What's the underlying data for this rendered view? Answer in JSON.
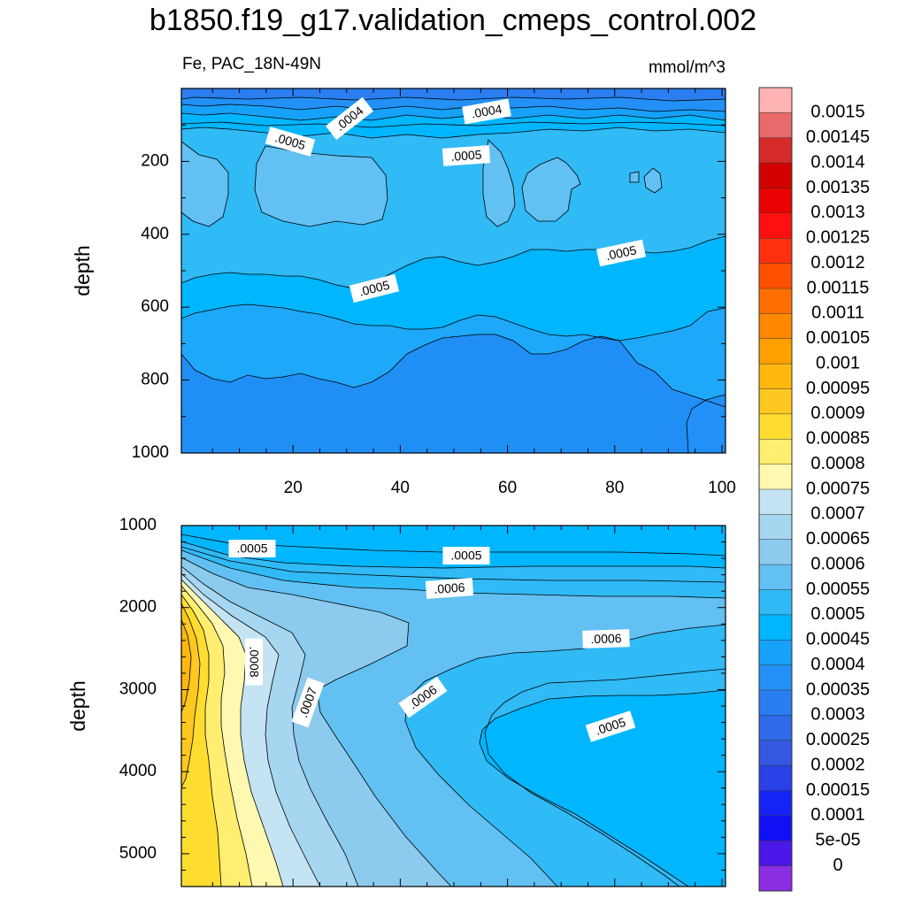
{
  "chart_data": {
    "title": "b1850.f19_g17.validation_cmeps_control.002",
    "subtitle_left": "Fe, PAC_18N-49N",
    "units": "mmol/m^3",
    "type": "heatmap",
    "panels": [
      {
        "name": "upper",
        "ylabel": "depth",
        "ylim": [
          0,
          1000
        ],
        "yticks": [
          "200",
          "400",
          "600",
          "800",
          "1000"
        ],
        "xlim": [
          0,
          100
        ],
        "xticks": [
          "20",
          "40",
          "60",
          "80",
          "100"
        ],
        "contour_labels": [
          ".0004",
          ".0004",
          ".0005",
          ".0005",
          ".0005",
          ".0005"
        ]
      },
      {
        "name": "lower",
        "ylabel": "depth",
        "ylim": [
          1000,
          5400
        ],
        "yticks": [
          "1000",
          "2000",
          "3000",
          "4000",
          "5000"
        ],
        "contour_labels": [
          ".0005",
          ".0005",
          ".0006",
          ".0006",
          ".0008",
          ".0007",
          ".0006",
          ".0005"
        ]
      }
    ],
    "colorbar": {
      "labels": [
        "0.0015",
        "0.00145",
        "0.0014",
        "0.00135",
        "0.0013",
        "0.00125",
        "0.0012",
        "0.00115",
        "0.0011",
        "0.00105",
        "0.001",
        "0.00095",
        "0.0009",
        "0.00085",
        "0.0008",
        "0.00075",
        "0.0007",
        "0.00065",
        "0.0006",
        "0.00055",
        "0.0005",
        "0.00045",
        "0.0004",
        "0.00035",
        "0.0003",
        "0.00025",
        "0.0002",
        "0.00015",
        "0.0001",
        "5e-05",
        "0"
      ],
      "colors": [
        "#ffb3b3",
        "#e86a6a",
        "#d42a2a",
        "#d20000",
        "#ea0000",
        "#ff1010",
        "#ff3010",
        "#ff5000",
        "#ff6e00",
        "#ff8800",
        "#ffa000",
        "#ffb810",
        "#ffc820",
        "#ffdd30",
        "#ffee70",
        "#fff8b0",
        "#c4e4f4",
        "#a6d6f0",
        "#8ccaee",
        "#62c0f2",
        "#30baf6",
        "#00b6fe",
        "#16a2fa",
        "#2290f6",
        "#2a7ef0",
        "#2e6aea",
        "#3458e2",
        "#2a40e8",
        "#1424f4",
        "#1010f4",
        "#4a18e8",
        "#8a2ee4"
      ]
    }
  }
}
